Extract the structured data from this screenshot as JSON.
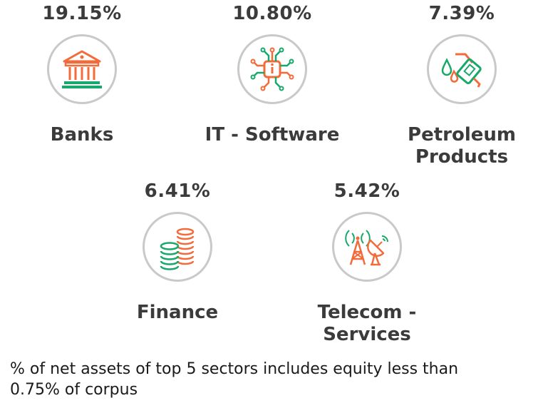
{
  "colors": {
    "orange": "#f26b3a",
    "green": "#19a86b",
    "circle_border": "#c9c9c9",
    "text": "#3b3b3b"
  },
  "sectors": [
    {
      "percent": "19.15%",
      "name_lines": [
        "Banks"
      ],
      "icon": "bank-icon"
    },
    {
      "percent": "10.80%",
      "name_lines": [
        "IT - Software"
      ],
      "icon": "circuit-chip-icon"
    },
    {
      "percent": "7.39%",
      "name_lines": [
        "Petroleum",
        "Products"
      ],
      "icon": "fuel-nozzle-icon"
    },
    {
      "percent": "6.41%",
      "name_lines": [
        "Finance"
      ],
      "icon": "coin-stacks-icon"
    },
    {
      "percent": "5.42%",
      "name_lines": [
        "Telecom -",
        "Services"
      ],
      "icon": "telecom-tower-icon"
    }
  ],
  "footnote": {
    "line1": "% of net assets of top 5 sectors includes equity less than",
    "line2": "0.75% of corpus"
  }
}
